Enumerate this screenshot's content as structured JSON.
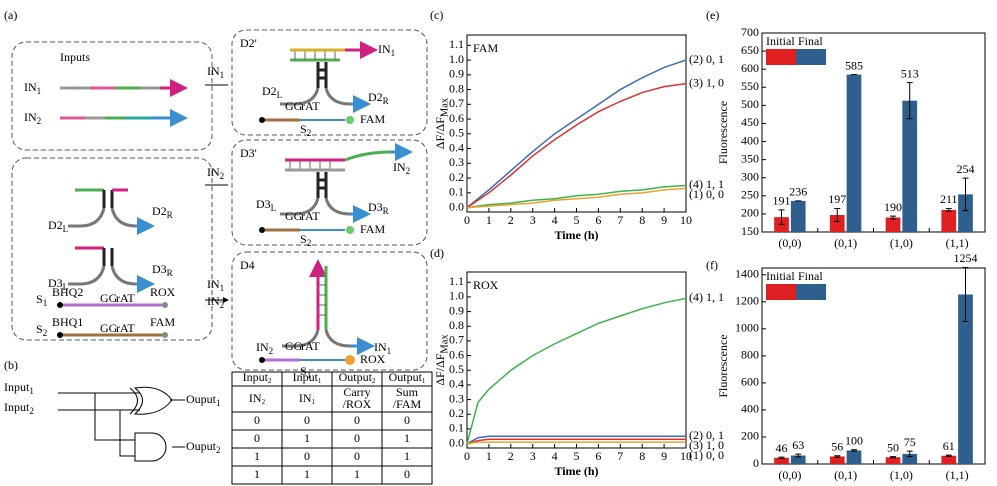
{
  "diagram": {
    "panel": "(a)",
    "inputs": "Inputs",
    "IN1": [
      "IN",
      "1"
    ],
    "IN2": [
      "IN",
      "2"
    ],
    "D2p": "D2'",
    "D3p": "D3'",
    "D4": "D4",
    "D2L": [
      "D2",
      "L"
    ],
    "D2R": [
      "D2",
      "R"
    ],
    "D3L": [
      "D3",
      "L"
    ],
    "D3R": [
      "D3",
      "R"
    ],
    "S1": [
      "S",
      "1"
    ],
    "S2": [
      "S",
      "2"
    ],
    "BHQ1": "BHQ1",
    "BHQ2": "BHQ2",
    "ROX": "ROX",
    "FAM": "FAM",
    "GG": "GG",
    "rAT": "rAT"
  },
  "logic": {
    "panel": "(b)",
    "inputs": [
      [
        "Input",
        "1"
      ],
      [
        "Input",
        "2"
      ]
    ],
    "outputs": [
      [
        "Ouput",
        "1"
      ],
      [
        "Ouput",
        "2"
      ]
    ],
    "table": {
      "header": [
        [
          "Input",
          "2"
        ],
        [
          "Input",
          "1"
        ],
        [
          "Output",
          "2"
        ],
        [
          "Output",
          "1"
        ]
      ],
      "inputs_row": [
        [
          "IN",
          "2"
        ],
        [
          "IN",
          "1"
        ]
      ],
      "outputs_row": [
        [
          "Carry",
          "/ROX"
        ],
        [
          "Sum",
          "/FAM"
        ]
      ],
      "rows": [
        [
          0,
          0,
          0,
          0
        ],
        [
          0,
          1,
          0,
          1
        ],
        [
          1,
          0,
          0,
          1
        ],
        [
          1,
          1,
          1,
          0
        ]
      ]
    }
  },
  "chart_data": [
    {
      "type": "line",
      "panel": "(c)",
      "title": "FAM",
      "x_label": "Time (h)",
      "y_label": [
        "ΔF/ΔF",
        "Max"
      ],
      "x": [
        0,
        1,
        2,
        3,
        4,
        5,
        6,
        7,
        8,
        9,
        10
      ],
      "xlim": [
        0,
        10
      ],
      "xticks": [
        0,
        1,
        2,
        3,
        4,
        5,
        6,
        7,
        8,
        9,
        10
      ],
      "ylim": [
        -0.03,
        1.17
      ],
      "yticks": [
        {
          "value": 0,
          "label": "0.0"
        },
        {
          "value": 0.1,
          "label": "0.1"
        },
        {
          "value": 0.2,
          "label": "0.2"
        },
        {
          "value": 0.3,
          "label": "0.3"
        },
        {
          "value": 0.4,
          "label": "0.4"
        },
        {
          "value": 0.5,
          "label": "0.5"
        },
        {
          "value": 0.6,
          "label": "0.6"
        },
        {
          "value": 0.7,
          "label": "0.7"
        },
        {
          "value": 0.8,
          "label": "0.8"
        },
        {
          "value": 0.9,
          "label": "0.9"
        },
        {
          "value": 1,
          "label": "1.0"
        },
        {
          "value": 1.1,
          "label": "1.1"
        }
      ],
      "series": [
        {
          "name": "(2) 0, 1",
          "color": "#3a6fb5",
          "values": [
            0,
            0.12,
            0.25,
            0.38,
            0.5,
            0.6,
            0.7,
            0.8,
            0.88,
            0.95,
            1.0
          ]
        },
        {
          "name": "(3) 1, 0",
          "color": "#e03030",
          "values": [
            0,
            0.1,
            0.22,
            0.35,
            0.46,
            0.56,
            0.65,
            0.72,
            0.78,
            0.82,
            0.84
          ]
        },
        {
          "name": "(4) 1, 1",
          "color": "#3cb44b",
          "values": [
            0,
            0.02,
            0.03,
            0.05,
            0.06,
            0.08,
            0.09,
            0.11,
            0.12,
            0.14,
            0.15
          ]
        },
        {
          "name": "(1) 0, 0",
          "color": "#f0a030",
          "values": [
            0,
            0.01,
            0.02,
            0.03,
            0.05,
            0.06,
            0.07,
            0.09,
            0.1,
            0.12,
            0.13
          ]
        }
      ]
    },
    {
      "type": "line",
      "panel": "(d)",
      "title": "ROX",
      "x_label": "Time (h)",
      "y_label": [
        "ΔF/ΔF",
        "Max"
      ],
      "x": [
        0,
        0.5,
        1,
        2,
        3,
        4,
        5,
        6,
        7,
        8,
        9,
        10
      ],
      "xlim": [
        0,
        10
      ],
      "xticks": [
        0,
        1,
        2,
        3,
        4,
        5,
        6,
        7,
        8,
        9,
        10
      ],
      "ylim": [
        -0.03,
        1.17
      ],
      "yticks": [
        {
          "value": 0,
          "label": "0.0"
        },
        {
          "value": 0.1,
          "label": "0.1"
        },
        {
          "value": 0.2,
          "label": "0.2"
        },
        {
          "value": 0.3,
          "label": "0.3"
        },
        {
          "value": 0.4,
          "label": "0.4"
        },
        {
          "value": 0.5,
          "label": "0.5"
        },
        {
          "value": 0.6,
          "label": "0.6"
        },
        {
          "value": 0.7,
          "label": "0.7"
        },
        {
          "value": 0.8,
          "label": "0.8"
        },
        {
          "value": 0.9,
          "label": "0.9"
        },
        {
          "value": 1,
          "label": "1.0"
        },
        {
          "value": 1.1,
          "label": "1.1"
        }
      ],
      "series": [
        {
          "name": "(2) 0, 1",
          "color": "#3a6fb5",
          "values": [
            0,
            0.04,
            0.05,
            0.05,
            0.05,
            0.05,
            0.05,
            0.05,
            0.05,
            0.05,
            0.05,
            0.05
          ]
        },
        {
          "name": "(3) 1, 0",
          "color": "#e03030",
          "values": [
            0,
            0.02,
            0.03,
            0.03,
            0.03,
            0.03,
            0.03,
            0.03,
            0.03,
            0.03,
            0.03,
            0.03
          ]
        },
        {
          "name": "(1) 0, 0",
          "color": "#f0a030",
          "values": [
            0,
            0.01,
            0.01,
            0.01,
            0.01,
            0.01,
            0.01,
            0.01,
            0.01,
            0.01,
            0.01,
            0.01
          ]
        },
        {
          "name": "(4) 1, 1",
          "color": "#3cb44b",
          "values": [
            0,
            0.28,
            0.37,
            0.5,
            0.6,
            0.68,
            0.75,
            0.82,
            0.87,
            0.92,
            0.96,
            0.99
          ]
        }
      ]
    },
    {
      "type": "bar",
      "panel": "(e)",
      "y_label": "Fluorescence",
      "categories": [
        "(0,0)",
        "(0,1)",
        "(1,0)",
        "(1,1)"
      ],
      "ylim": [
        150,
        700
      ],
      "yticks": [
        150,
        200,
        250,
        300,
        350,
        400,
        450,
        500,
        550,
        600,
        650,
        700
      ],
      "series": [
        {
          "name": "Initial",
          "color": "#e02020",
          "values": [
            191,
            197,
            190,
            211
          ],
          "errors": [
            20,
            18,
            4,
            4
          ]
        },
        {
          "name": "Final",
          "color": "#2f5f8f",
          "values": [
            236,
            585,
            513,
            254
          ],
          "errors": [
            0,
            0,
            50,
            45
          ]
        }
      ]
    },
    {
      "type": "bar",
      "panel": "(f)",
      "y_label": "Fluorescence",
      "categories": [
        "(0,0)",
        "(0,1)",
        "(1,0)",
        "(1,1)"
      ],
      "ylim": [
        0,
        1450
      ],
      "yticks": [
        0,
        200,
        400,
        600,
        800,
        1000,
        1200,
        1400
      ],
      "series": [
        {
          "name": "Initial",
          "color": "#e02020",
          "values": [
            46,
            56,
            50,
            61
          ],
          "errors": [
            5,
            5,
            5,
            5
          ]
        },
        {
          "name": "Final",
          "color": "#2f5f8f",
          "values": [
            63,
            100,
            75,
            1254
          ],
          "errors": [
            10,
            5,
            20,
            200
          ]
        }
      ]
    }
  ]
}
